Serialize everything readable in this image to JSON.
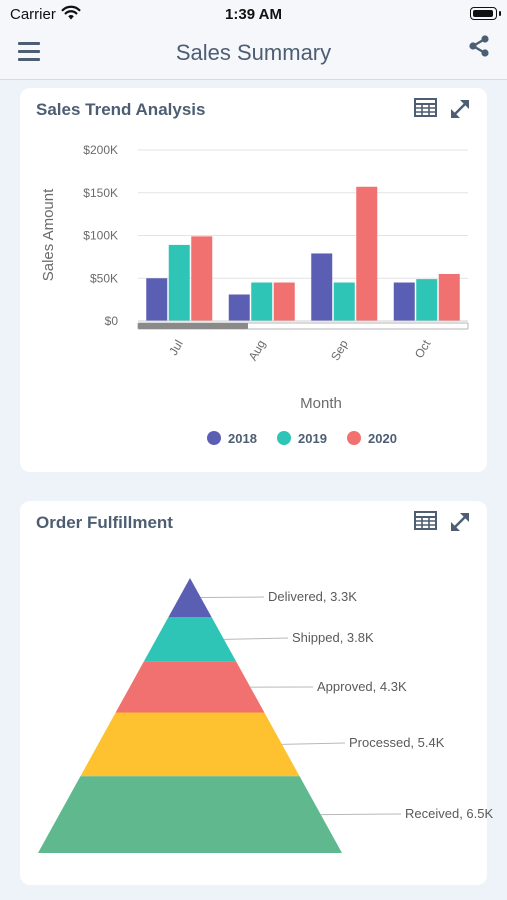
{
  "status_bar": {
    "carrier": "Carrier",
    "time": "1:39 AM"
  },
  "header": {
    "title": "Sales Summary"
  },
  "colors": {
    "s2018": "#5b5fb4",
    "s2019": "#2ec4b6",
    "s2020": "#f0716f",
    "processed": "#fec12f",
    "received": "#5fb88e"
  },
  "cards": {
    "sales_trend": {
      "title": "Sales Trend Analysis"
    },
    "order_fulfillment": {
      "title": "Order Fulfillment"
    }
  },
  "chart_data": [
    {
      "type": "bar",
      "title": "Sales Trend Analysis",
      "xlabel": "Month",
      "ylabel": "Sales Amount",
      "categories": [
        "Jul",
        "Aug",
        "Sep",
        "Oct"
      ],
      "series": [
        {
          "name": "2018",
          "values": [
            50,
            31,
            79,
            45
          ]
        },
        {
          "name": "2019",
          "values": [
            89,
            45,
            45,
            49
          ]
        },
        {
          "name": "2020",
          "values": [
            99,
            45,
            157,
            55
          ]
        }
      ],
      "ylim": [
        0,
        200
      ],
      "yticks": [
        0,
        50,
        100,
        150,
        200
      ],
      "ytick_labels": [
        "$0",
        "$50K",
        "$100K",
        "$150K",
        "$200K"
      ],
      "grid": true,
      "legend": "bottom"
    },
    {
      "type": "pyramid",
      "title": "Order Fulfillment",
      "stages": [
        {
          "label": "Delivered, 3.3K",
          "value": 3.3
        },
        {
          "label": "Shipped, 3.8K",
          "value": 3.8
        },
        {
          "label": "Approved, 4.3K",
          "value": 4.3
        },
        {
          "label": "Processed, 5.4K",
          "value": 5.4
        },
        {
          "label": "Received, 6.5K",
          "value": 6.5
        }
      ]
    }
  ]
}
